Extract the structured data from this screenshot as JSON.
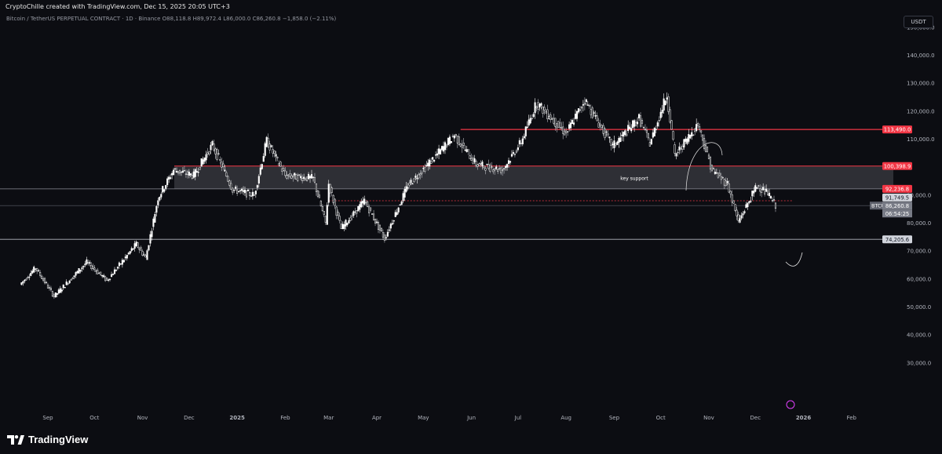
{
  "header": {
    "attribution": "CryptoChille created with TradingView.com, Dec 15, 2025 20:05 UTC+3"
  },
  "legend": {
    "symbol": "Bitcoin / TetherUS PERPETUAL CONTRACT · 1D · Binance",
    "o_label": "O",
    "o_value": "88,118.8",
    "h_label": "H",
    "h_value": "89,972.4",
    "l_label": "L",
    "l_value": "86,000.0",
    "c_label": "C",
    "c_value": "86,260.8",
    "change": "−1,858.0 (−2.11%)"
  },
  "currency_button": "USDT",
  "footer": {
    "brand": "TradingView"
  },
  "colors": {
    "background": "#0c0d12",
    "resistance": "#f23645",
    "zone": "#3a3b42",
    "text": "#d1d4dc",
    "candle": "#ffffff"
  },
  "chart_data": {
    "type": "candlestick",
    "symbol": "BTCUSDT.P",
    "ylim": [
      25000,
      160000
    ],
    "y_ticks": [
      30000,
      40000,
      50000,
      60000,
      70000,
      80000,
      90000,
      110000,
      120000,
      130000,
      140000,
      150000
    ],
    "y_tick_labels": [
      "30,000.0",
      "40,000.0",
      "50,000.0",
      "60,000.0",
      "70,000.0",
      "80,000.0",
      "90,000.0",
      "110,000.0",
      "120,000.0",
      "130,000.0",
      "140,000.0",
      "150,000.0"
    ],
    "x_ticks": [
      {
        "label": "Sep",
        "date": "2024-09-01"
      },
      {
        "label": "Oct",
        "date": "2024-10-01"
      },
      {
        "label": "Nov",
        "date": "2024-11-01"
      },
      {
        "label": "Dec",
        "date": "2024-12-01"
      },
      {
        "label": "2025",
        "date": "2025-01-01"
      },
      {
        "label": "Feb",
        "date": "2025-02-01"
      },
      {
        "label": "Mar",
        "date": "2025-03-01"
      },
      {
        "label": "Apr",
        "date": "2025-04-01"
      },
      {
        "label": "May",
        "date": "2025-05-01"
      },
      {
        "label": "Jun",
        "date": "2025-06-01"
      },
      {
        "label": "Jul",
        "date": "2025-07-01"
      },
      {
        "label": "Aug",
        "date": "2025-08-01"
      },
      {
        "label": "Sep",
        "date": "2025-09-01"
      },
      {
        "label": "Oct",
        "date": "2025-10-01"
      },
      {
        "label": "Nov",
        "date": "2025-11-01"
      },
      {
        "label": "Dec",
        "date": "2025-12-01"
      },
      {
        "label": "2026",
        "date": "2026-01-01"
      },
      {
        "label": "Feb",
        "date": "2026-02-01"
      }
    ],
    "price_path": [
      [
        "2024-08-15",
        58000
      ],
      [
        "2024-08-25",
        64000
      ],
      [
        "2024-09-06",
        53800
      ],
      [
        "2024-09-27",
        66000
      ],
      [
        "2024-10-10",
        59500
      ],
      [
        "2024-10-29",
        72500
      ],
      [
        "2024-11-04",
        67500
      ],
      [
        "2024-11-12",
        89000
      ],
      [
        "2024-11-22",
        99000
      ],
      [
        "2024-12-05",
        97000
      ],
      [
        "2024-12-17",
        108000
      ],
      [
        "2024-12-30",
        92000
      ],
      [
        "2025-01-13",
        90000
      ],
      [
        "2025-01-21",
        109500
      ],
      [
        "2025-02-02",
        97000
      ],
      [
        "2025-02-20",
        96000
      ],
      [
        "2025-02-28",
        80000
      ],
      [
        "2025-03-02",
        94000
      ],
      [
        "2025-03-10",
        78000
      ],
      [
        "2025-03-25",
        88000
      ],
      [
        "2025-04-07",
        74500
      ],
      [
        "2025-04-22",
        93500
      ],
      [
        "2025-05-10",
        104000
      ],
      [
        "2025-05-22",
        111500
      ],
      [
        "2025-06-05",
        101000
      ],
      [
        "2025-06-22",
        99000
      ],
      [
        "2025-07-04",
        109000
      ],
      [
        "2025-07-14",
        123000
      ],
      [
        "2025-08-02",
        112000
      ],
      [
        "2025-08-14",
        124000
      ],
      [
        "2025-09-01",
        107500
      ],
      [
        "2025-09-18",
        117500
      ],
      [
        "2025-09-25",
        108500
      ],
      [
        "2025-10-06",
        126000
      ],
      [
        "2025-10-11",
        104000
      ],
      [
        "2025-10-26",
        115500
      ],
      [
        "2025-11-04",
        99000
      ],
      [
        "2025-11-14",
        94000
      ],
      [
        "2025-11-21",
        80500
      ],
      [
        "2025-12-03",
        93500
      ],
      [
        "2025-12-10",
        90500
      ],
      [
        "2025-12-15",
        86260.8
      ]
    ],
    "last_date": "2025-12-15",
    "annotations": {
      "resistance": {
        "price": 113490.0,
        "label": "113,490.0",
        "x_start": "2025-05-25"
      },
      "key_support_zone": {
        "top": 100398.9,
        "bottom": 92236.8,
        "top_label": "100,398.9",
        "bottom_label": "92,236.8",
        "text": "key support"
      },
      "level_91749": {
        "price": 91749.5,
        "label": "91,749.5"
      },
      "last_price": {
        "price": 86260.8,
        "label": "86,260.8",
        "symbol_label": "BTCUSDT.P",
        "countdown": "06:54:25"
      },
      "support_low": {
        "price": 74205.6,
        "label": "74,205.6"
      },
      "upper_hline": {
        "price": 92236.8
      },
      "dashed_level": {
        "price": 88000,
        "x_start": "2025-03-01"
      }
    }
  }
}
